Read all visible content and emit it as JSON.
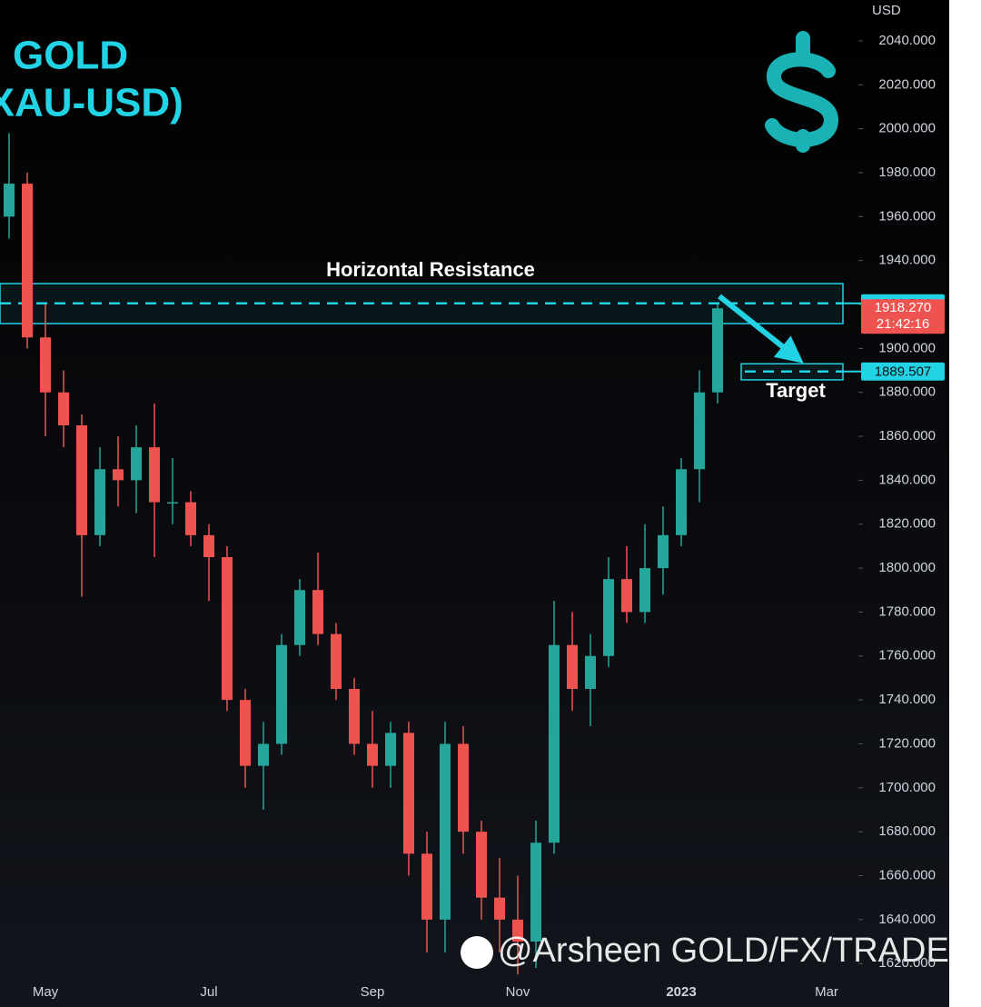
{
  "chart_data": {
    "type": "candlestick",
    "title": [
      "GOLD",
      "(XAU-USD)"
    ],
    "y_axis_unit": "USD",
    "categories": [
      null,
      null,
      "May",
      null,
      null,
      null,
      null,
      null,
      null,
      null,
      null,
      "Jul",
      null,
      null,
      null,
      null,
      null,
      null,
      null,
      null,
      "Sep",
      null,
      null,
      null,
      null,
      null,
      null,
      null,
      "Nov",
      null,
      null,
      null,
      null,
      null,
      null,
      null,
      null,
      "2023",
      null,
      null,
      null,
      null,
      null,
      null,
      null,
      "Mar",
      null
    ],
    "series": [
      {
        "name": "XAU-USD",
        "up_color": "#26a69a",
        "down_color": "#ef5350",
        "open": [
          1960,
          1975,
          1905,
          1880,
          1865,
          1815,
          1845,
          1840,
          1855,
          1830,
          1830,
          1815,
          1805,
          1740,
          1710,
          1720,
          1765,
          1790,
          1770,
          1745,
          1720,
          1710,
          1725,
          1670,
          1640,
          1720,
          1680,
          1650,
          1640,
          1630,
          1675,
          1765,
          1745,
          1760,
          1795,
          1780,
          1800,
          1815,
          1845,
          1880,
          null,
          null,
          null,
          null,
          null,
          null,
          null
        ],
        "high": [
          1998,
          1980,
          1920,
          1890,
          1870,
          1855,
          1860,
          1865,
          1875,
          1850,
          1835,
          1820,
          1810,
          1745,
          1730,
          1770,
          1795,
          1807,
          1775,
          1750,
          1735,
          1730,
          1730,
          1680,
          1730,
          1728,
          1685,
          1668,
          1660,
          1685,
          1785,
          1780,
          1770,
          1805,
          1810,
          1820,
          1828,
          1850,
          1890,
          1920,
          null,
          null,
          null,
          null,
          null,
          null,
          null
        ],
        "low": [
          1950,
          1900,
          1860,
          1855,
          1787,
          1810,
          1828,
          1825,
          1805,
          1820,
          1810,
          1785,
          1735,
          1700,
          1690,
          1715,
          1760,
          1765,
          1740,
          1715,
          1700,
          1700,
          1660,
          1625,
          1625,
          1670,
          1640,
          1625,
          1615,
          1618,
          1670,
          1735,
          1728,
          1755,
          1775,
          1775,
          1788,
          1810,
          1830,
          1875,
          null,
          null,
          null,
          null,
          null,
          null,
          null
        ],
        "close": [
          1975,
          1905,
          1880,
          1865,
          1815,
          1845,
          1840,
          1855,
          1830,
          1830,
          1815,
          1805,
          1740,
          1710,
          1720,
          1765,
          1790,
          1770,
          1745,
          1720,
          1710,
          1725,
          1670,
          1640,
          1720,
          1680,
          1650,
          1640,
          1630,
          1675,
          1765,
          1745,
          1760,
          1795,
          1780,
          1800,
          1815,
          1845,
          1880,
          1918.27,
          null,
          null,
          null,
          null,
          null,
          null,
          null
        ]
      }
    ],
    "ylim": [
      1611.8,
      2058.6
    ],
    "yticks": [
      {
        "value": 1620,
        "label": "1620.000"
      },
      {
        "value": 1640,
        "label": "1640.000"
      },
      {
        "value": 1660,
        "label": "1660.000"
      },
      {
        "value": 1680,
        "label": "1680.000"
      },
      {
        "value": 1700,
        "label": "1700.000"
      },
      {
        "value": 1720,
        "label": "1720.000"
      },
      {
        "value": 1740,
        "label": "1740.000"
      },
      {
        "value": 1760,
        "label": "1760.000"
      },
      {
        "value": 1780,
        "label": "1780.000"
      },
      {
        "value": 1800,
        "label": "1800.000"
      },
      {
        "value": 1820,
        "label": "1820.000"
      },
      {
        "value": 1840,
        "label": "1840.000"
      },
      {
        "value": 1860,
        "label": "1860.000"
      },
      {
        "value": 1880,
        "label": "1880.000"
      },
      {
        "value": 1900,
        "label": "1900.000"
      },
      {
        "value": 1920,
        "label": "1920.000"
      },
      {
        "value": 1940,
        "label": "1940.000"
      },
      {
        "value": 1960,
        "label": "1960.000"
      },
      {
        "value": 1980,
        "label": "1980.000"
      },
      {
        "value": 2000,
        "label": "2000.000"
      },
      {
        "value": 2020,
        "label": "2020.000"
      },
      {
        "value": 2040,
        "label": "2040.000"
      }
    ],
    "grid": false,
    "resistance": {
      "label": "Horizontal Resistance",
      "value": 1920.504,
      "zone": [
        1911.3,
        1929.5
      ],
      "color": "#22d3e6"
    },
    "target": {
      "label": "Target",
      "value": 1889.507,
      "zone": [
        1885.7,
        1893
      ],
      "color": "#22d3e6"
    },
    "last_price": {
      "value": 1918.27,
      "label": "1918.270",
      "countdown": "21:42:16",
      "color": "#ef5350"
    },
    "watermark": "@Arsheen GOLD/FX/TRADER"
  }
}
